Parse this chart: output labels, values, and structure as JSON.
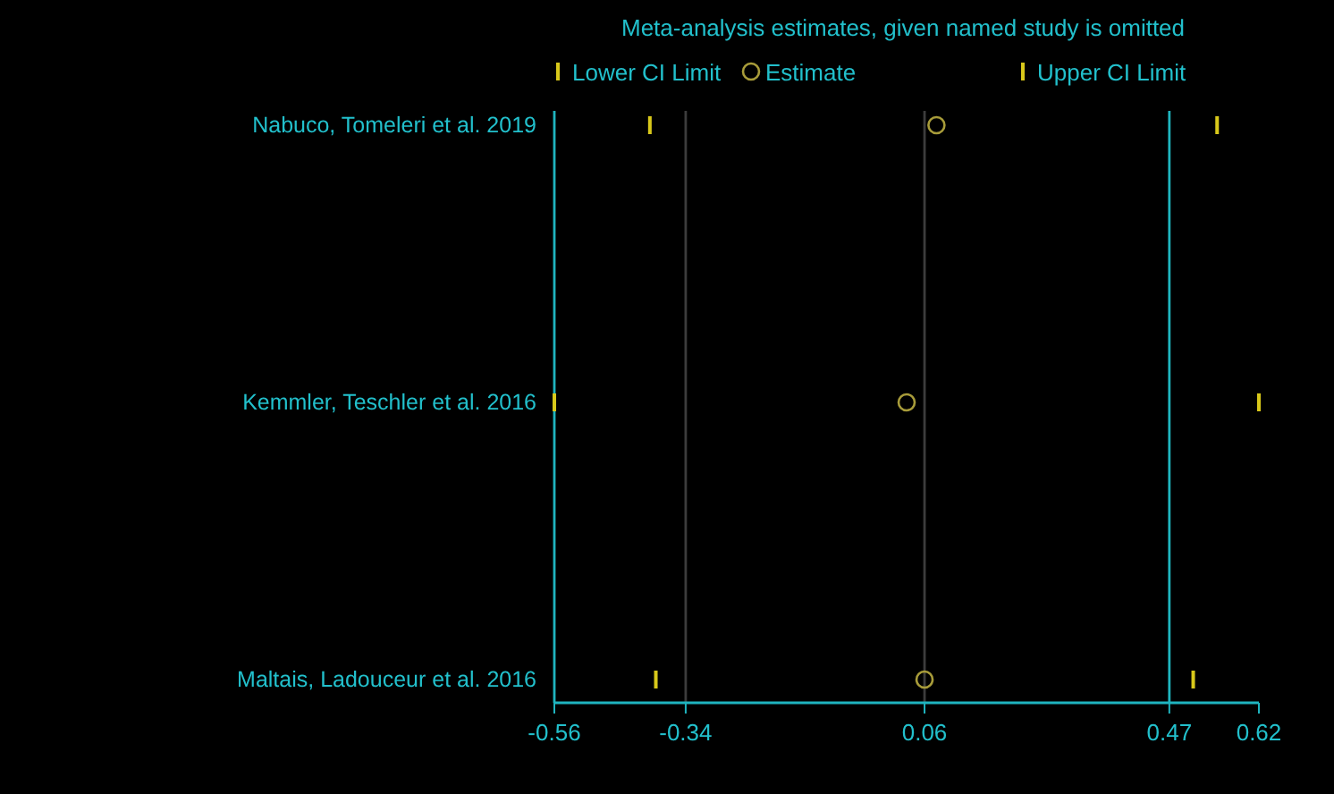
{
  "chart_data": {
    "type": "scatter",
    "orientation": "horizontal",
    "title": "Meta-analysis estimates, given named study is omitted",
    "categories": [
      "Nabuco, Tomeleri et al. 2019",
      "Kemmler, Teschler et al. 2016",
      "Maltais, Ladouceur et al. 2016"
    ],
    "series": [
      {
        "name": "Lower CI Limit",
        "color": "#d8c81a",
        "values": [
          -0.4,
          -0.56,
          -0.39
        ]
      },
      {
        "name": "Estimate",
        "color": "#a89c3a",
        "marker": "circle",
        "values": [
          0.08,
          0.03,
          0.06
        ]
      },
      {
        "name": "Upper CI Limit",
        "color": "#d8c81a",
        "values": [
          0.55,
          0.62,
          0.51
        ]
      }
    ],
    "xlim": [
      -0.56,
      0.62
    ],
    "xticks": [
      -0.56,
      -0.34,
      0.06,
      0.47,
      0.62
    ],
    "ref_lines": [
      {
        "axis": "x",
        "value": -0.34,
        "color": "#3c3c3c"
      },
      {
        "axis": "x",
        "value": 0.06,
        "color": "#3c3c3c"
      },
      {
        "axis": "x",
        "value": 0.47,
        "color": "#1fb4bf"
      }
    ],
    "legend": "top",
    "grid": false
  }
}
